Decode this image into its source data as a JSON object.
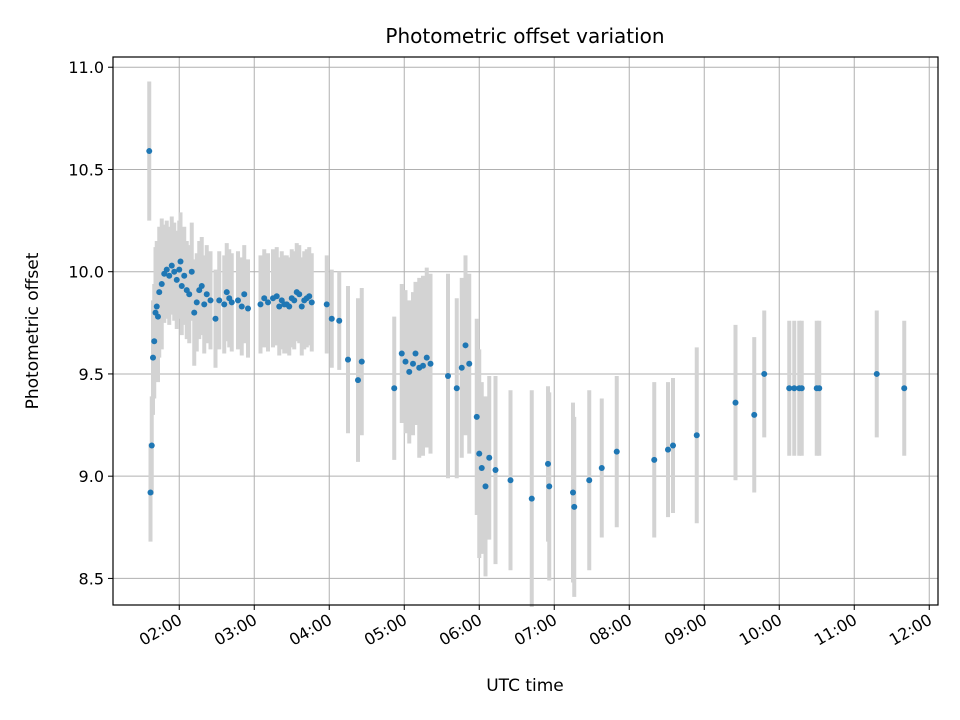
{
  "chart_data": {
    "type": "scatter",
    "title": "Photometric offset variation",
    "xlabel": "UTC time",
    "ylabel": "Photometric offset",
    "x_ticks": [
      "02:00",
      "03:00",
      "04:00",
      "05:00",
      "06:00",
      "07:00",
      "08:00",
      "09:00",
      "10:00",
      "11:00",
      "12:00"
    ],
    "y_ticks": [
      "8.5",
      "9.0",
      "9.5",
      "10.0",
      "10.5",
      "11.0"
    ],
    "xlim": [
      "01:07",
      "12:07"
    ],
    "ylim": [
      8.37,
      11.05
    ],
    "grid": true,
    "colors": {
      "point": "#1f77b4",
      "errorbar": "#d3d3d3",
      "grid": "#b0b0b0"
    },
    "series": [
      {
        "x": [
          "01:36",
          "01:37",
          "01:38",
          "01:39",
          "01:40",
          "01:41",
          "01:42",
          "01:43",
          "01:44",
          "01:46",
          "01:48",
          "01:50",
          "01:52",
          "01:54",
          "01:56",
          "01:58",
          "02:00",
          "02:01",
          "02:02",
          "02:04",
          "02:06",
          "02:08",
          "02:10",
          "02:12",
          "02:14",
          "02:16",
          "02:18",
          "02:20",
          "02:22",
          "02:25",
          "02:29",
          "02:32",
          "02:36",
          "02:38",
          "02:40",
          "02:42",
          "02:47",
          "02:50",
          "02:52",
          "02:55",
          "03:05",
          "03:08",
          "03:11",
          "03:15",
          "03:18",
          "03:20",
          "03:22",
          "03:24",
          "03:26",
          "03:28",
          "03:30",
          "03:32",
          "03:34",
          "03:36",
          "03:38",
          "03:40",
          "03:42",
          "03:44",
          "03:46",
          "03:58",
          "04:02",
          "04:08",
          "04:15",
          "04:23",
          "04:26",
          "04:52",
          "04:58",
          "05:01",
          "05:04",
          "05:07",
          "05:09",
          "05:12",
          "05:15",
          "05:18",
          "05:21",
          "05:35",
          "05:42",
          "05:46",
          "05:49",
          "05:52",
          "05:58",
          "06:00",
          "06:02",
          "06:05",
          "06:08",
          "06:13",
          "06:25",
          "06:42",
          "06:55",
          "06:56",
          "07:15",
          "07:16",
          "07:28",
          "07:38",
          "07:50",
          "08:20",
          "08:31",
          "08:35",
          "08:54",
          "09:25",
          "09:40",
          "09:48",
          "10:08",
          "10:12",
          "10:16",
          "10:18",
          "10:30",
          "10:32",
          "11:18",
          "11:40"
        ],
        "y": [
          10.59,
          8.92,
          9.15,
          9.58,
          9.66,
          9.8,
          9.83,
          9.78,
          9.9,
          9.94,
          9.99,
          10.01,
          9.98,
          10.03,
          10.0,
          9.96,
          10.01,
          10.05,
          9.93,
          9.98,
          9.91,
          9.89,
          10.0,
          9.8,
          9.85,
          9.91,
          9.93,
          9.84,
          9.89,
          9.86,
          9.77,
          9.86,
          9.84,
          9.9,
          9.87,
          9.85,
          9.86,
          9.83,
          9.89,
          9.82,
          9.84,
          9.87,
          9.85,
          9.87,
          9.88,
          9.83,
          9.86,
          9.84,
          9.84,
          9.83,
          9.87,
          9.86,
          9.9,
          9.89,
          9.83,
          9.86,
          9.87,
          9.88,
          9.85,
          9.84,
          9.77,
          9.76,
          9.57,
          9.47,
          9.56,
          9.43,
          9.6,
          9.56,
          9.51,
          9.55,
          9.6,
          9.53,
          9.54,
          9.58,
          9.55,
          9.49,
          9.43,
          9.53,
          9.64,
          9.55,
          9.29,
          9.11,
          9.04,
          8.95,
          9.09,
          9.03,
          8.98,
          8.89,
          9.06,
          8.95,
          8.92,
          8.85,
          8.98,
          9.04,
          9.12,
          9.08,
          9.13,
          9.15,
          9.2,
          9.36,
          9.3,
          9.5,
          9.43,
          9.43,
          9.43,
          9.43,
          9.43,
          9.43,
          9.5,
          9.43
        ],
        "err": [
          0.34,
          0.24,
          0.24,
          0.28,
          0.28,
          0.32,
          0.32,
          0.32,
          0.32,
          0.32,
          0.24,
          0.24,
          0.24,
          0.24,
          0.24,
          0.24,
          0.24,
          0.24,
          0.24,
          0.24,
          0.24,
          0.24,
          0.24,
          0.26,
          0.24,
          0.24,
          0.24,
          0.24,
          0.24,
          0.24,
          0.24,
          0.24,
          0.24,
          0.24,
          0.24,
          0.24,
          0.24,
          0.24,
          0.24,
          0.24,
          0.24,
          0.24,
          0.24,
          0.24,
          0.24,
          0.24,
          0.24,
          0.24,
          0.24,
          0.24,
          0.24,
          0.24,
          0.24,
          0.24,
          0.24,
          0.24,
          0.24,
          0.24,
          0.24,
          0.24,
          0.24,
          0.24,
          0.36,
          0.4,
          0.36,
          0.35,
          0.34,
          0.35,
          0.35,
          0.35,
          0.35,
          0.44,
          0.44,
          0.44,
          0.44,
          0.5,
          0.44,
          0.44,
          0.44,
          0.44,
          0.48,
          0.51,
          0.42,
          0.44,
          0.4,
          0.46,
          0.44,
          0.53,
          0.38,
          0.46,
          0.44,
          0.44,
          0.44,
          0.34,
          0.37,
          0.38,
          0.33,
          0.33,
          0.43,
          0.38,
          0.38,
          0.31,
          0.33,
          0.33,
          0.33,
          0.33,
          0.33,
          0.33,
          0.31,
          0.33
        ]
      }
    ]
  }
}
